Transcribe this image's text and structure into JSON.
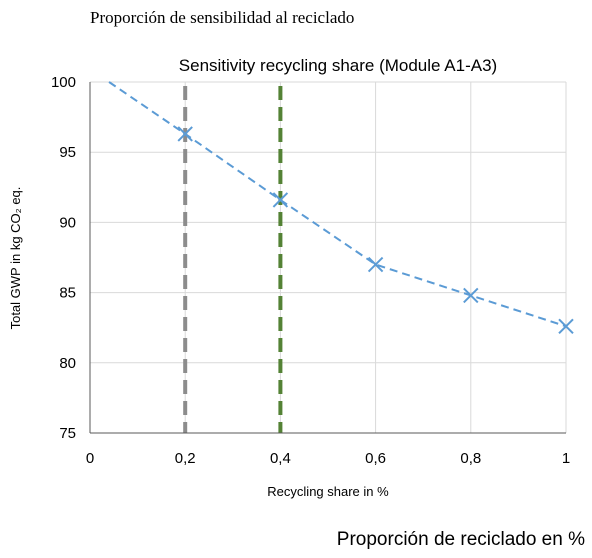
{
  "caption_top": "Proporción de sensibilidad al reciclado",
  "caption_bottom": "Proporción de reciclado en %",
  "colors": {
    "series": "#5b9bd5",
    "grid": "#d9d9d9",
    "axis": "#595959",
    "marker_line_1": "#8c8c8c",
    "marker_line_2": "#548235",
    "text": "#000000"
  },
  "chart_data": {
    "type": "line",
    "title": "Sensitivity recycling share (Module A1-A3)",
    "xlabel": "Recycling share in %",
    "ylabel": "Total GWP in kg CO₂ eq.",
    "xlim": [
      0,
      1
    ],
    "ylim": [
      75,
      100
    ],
    "x_ticks": [
      0,
      0.2,
      0.4,
      0.6,
      0.8,
      1
    ],
    "x_tick_labels": [
      "0",
      "0,2",
      "0,4",
      "0,6",
      "0,8",
      "1"
    ],
    "y_ticks": [
      75,
      80,
      85,
      90,
      95,
      100
    ],
    "y_tick_labels": [
      "75",
      "80",
      "85",
      "90",
      "95",
      "100"
    ],
    "grid": true,
    "legend": "none",
    "series": [
      {
        "line_style": "dashed",
        "marker": "x",
        "line_x": [
          0.04,
          0.2,
          0.4,
          0.6,
          0.8,
          1
        ],
        "line_y": [
          100,
          96.3,
          91.6,
          87.0,
          84.8,
          82.6
        ],
        "marker_x": [
          0.2,
          0.4,
          0.6,
          0.8,
          1
        ],
        "marker_y": [
          96.3,
          91.6,
          87.0,
          84.8,
          82.6
        ]
      }
    ],
    "reference_lines": [
      {
        "x": 0.2,
        "color": "#8c8c8c",
        "style": "dashed"
      },
      {
        "x": 0.4,
        "color": "#548235",
        "style": "dashed"
      }
    ]
  }
}
